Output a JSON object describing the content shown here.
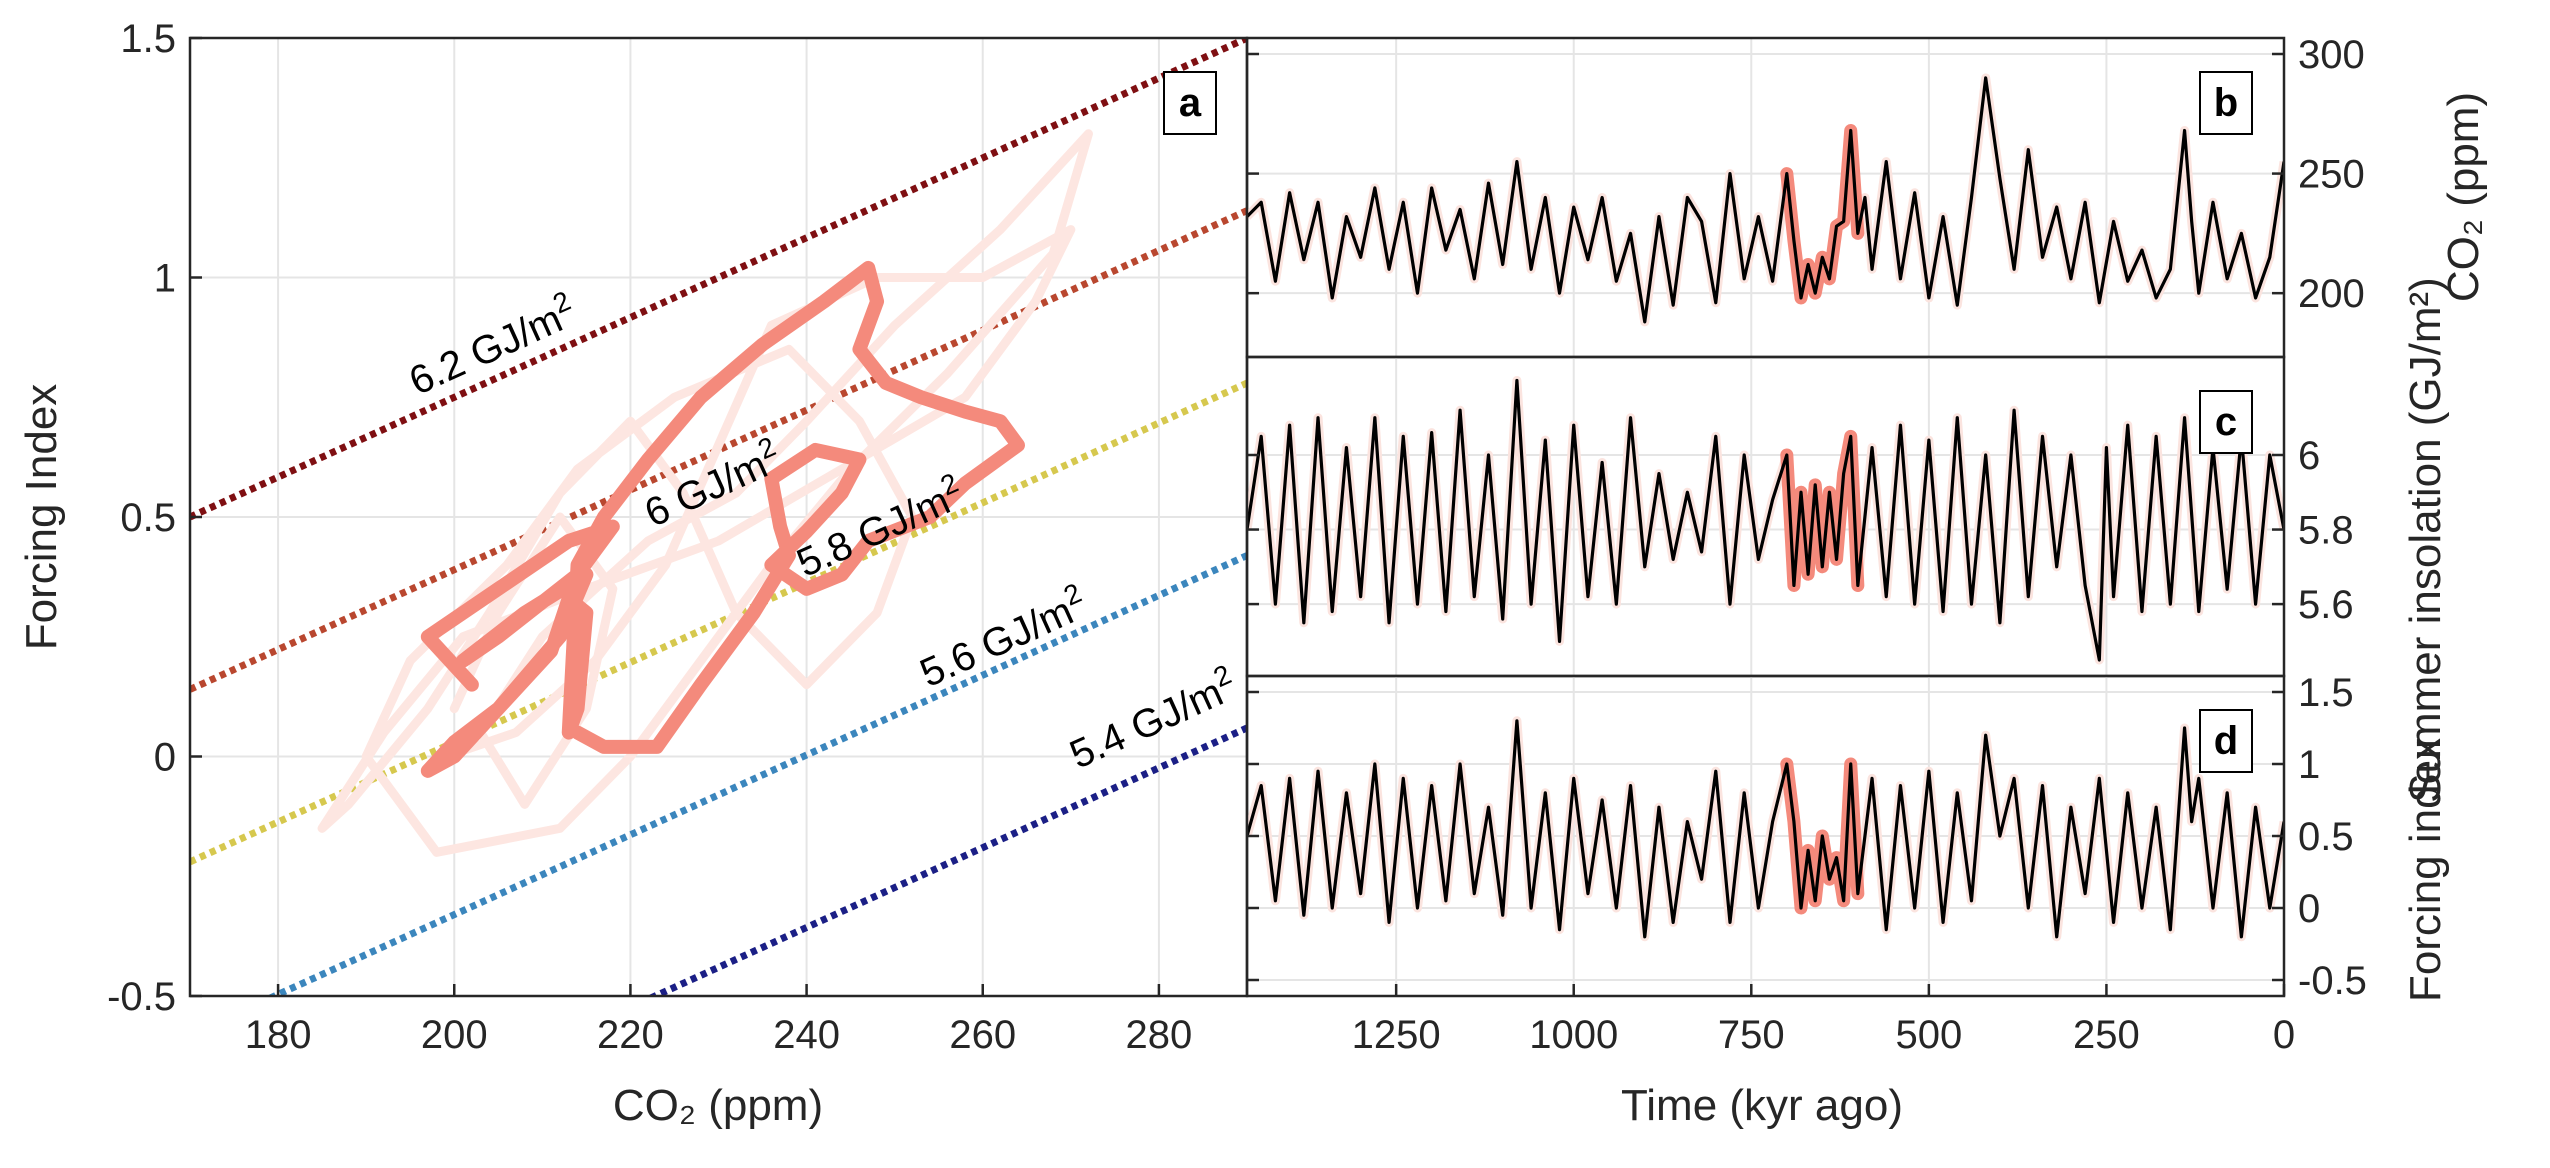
{
  "chart_data": [
    {
      "panel": "a",
      "type": "line",
      "xlabel": "CO₂ (ppm)",
      "ylabel": "Forcing Index",
      "xlim": [
        170,
        290
      ],
      "ylim": [
        -0.5,
        1.5
      ],
      "xticks": [
        180,
        200,
        220,
        240,
        260,
        280
      ],
      "yticks": [
        -0.5,
        0,
        0.5,
        1,
        1.5
      ],
      "ytick_labels": [
        "-0.5",
        "0",
        "0.5",
        "1",
        "1.5"
      ],
      "grid": true,
      "isolines": [
        {
          "label": "6.2 GJ/m",
          "sup": "2",
          "color": "#7f0f12",
          "y_at_xmin": 0.5,
          "slope": 0.00833
        },
        {
          "label": "6 GJ/m",
          "sup": "2",
          "color": "#b9472f",
          "y_at_xmin": 0.14,
          "slope": 0.00833
        },
        {
          "label": "5.8 GJ/m",
          "sup": "2",
          "color": "#d6c84e",
          "y_at_xmin": -0.22,
          "slope": 0.00833
        },
        {
          "label": "5.6 GJ/m",
          "sup": "2",
          "color": "#3b86bd",
          "y_at_xmin": -0.58,
          "slope": 0.00833
        },
        {
          "label": "5.4 GJ/m",
          "sup": "2",
          "color": "#1b1f86",
          "y_at_xmin": -0.94,
          "slope": 0.00833
        }
      ],
      "background_trajectory": [
        [
          200,
          0.1
        ],
        [
          205,
          0.3
        ],
        [
          212,
          0.5
        ],
        [
          218,
          0.35
        ],
        [
          215,
          0.1
        ],
        [
          208,
          -0.1
        ],
        [
          203,
          0.05
        ],
        [
          210,
          0.25
        ],
        [
          222,
          0.45
        ],
        [
          232,
          0.55
        ],
        [
          240,
          0.7
        ],
        [
          250,
          0.9
        ],
        [
          262,
          1.1
        ],
        [
          272,
          1.3
        ],
        [
          268,
          1.05
        ],
        [
          256,
          0.8
        ],
        [
          245,
          0.6
        ],
        [
          236,
          0.4
        ],
        [
          228,
          0.2
        ],
        [
          220,
          0.0
        ],
        [
          212,
          -0.15
        ],
        [
          198,
          -0.2
        ],
        [
          190,
          0.0
        ],
        [
          195,
          0.2
        ],
        [
          206,
          0.4
        ],
        [
          214,
          0.6
        ],
        [
          225,
          0.75
        ],
        [
          238,
          0.85
        ],
        [
          246,
          0.7
        ],
        [
          252,
          0.5
        ],
        [
          248,
          0.3
        ],
        [
          240,
          0.15
        ],
        [
          232,
          0.3
        ],
        [
          226,
          0.55
        ],
        [
          220,
          0.7
        ],
        [
          212,
          0.55
        ],
        [
          204,
          0.3
        ],
        [
          197,
          0.1
        ],
        [
          188,
          -0.1
        ],
        [
          185,
          -0.15
        ],
        [
          192,
          0.05
        ],
        [
          201,
          0.25
        ],
        [
          215,
          0.35
        ],
        [
          230,
          0.45
        ],
        [
          244,
          0.6
        ],
        [
          258,
          0.75
        ],
        [
          266,
          0.95
        ],
        [
          270,
          1.1
        ],
        [
          260,
          1.0
        ],
        [
          248,
          1.0
        ],
        [
          236,
          0.9
        ],
        [
          230,
          0.65
        ],
        [
          224,
          0.4
        ],
        [
          216,
          0.2
        ],
        [
          207,
          0.05
        ],
        [
          199,
          0.0
        ]
      ],
      "highlight_trajectory": [
        [
          202,
          0.15
        ],
        [
          197,
          0.25
        ],
        [
          205,
          0.35
        ],
        [
          213,
          0.45
        ],
        [
          218,
          0.48
        ],
        [
          214,
          0.38
        ],
        [
          205,
          0.25
        ],
        [
          201,
          0.2
        ],
        [
          208,
          0.3
        ],
        [
          215,
          0.38
        ],
        [
          212,
          0.25
        ],
        [
          205,
          0.1
        ],
        [
          200,
          0.03
        ],
        [
          197,
          -0.03
        ],
        [
          200,
          0.0
        ],
        [
          206,
          0.12
        ],
        [
          211,
          0.22
        ],
        [
          213,
          0.33
        ],
        [
          215,
          0.3
        ],
        [
          214,
          0.1
        ],
        [
          213,
          0.05
        ],
        [
          214,
          0.4
        ],
        [
          217,
          0.5
        ],
        [
          222,
          0.62
        ],
        [
          228,
          0.75
        ],
        [
          235,
          0.86
        ],
        [
          242,
          0.95
        ],
        [
          247,
          1.02
        ],
        [
          248,
          0.95
        ],
        [
          246,
          0.85
        ],
        [
          249,
          0.78
        ],
        [
          253,
          0.75
        ],
        [
          258,
          0.72
        ],
        [
          262,
          0.7
        ],
        [
          264,
          0.65
        ],
        [
          258,
          0.57
        ],
        [
          254,
          0.5
        ],
        [
          247,
          0.45
        ],
        [
          244,
          0.38
        ],
        [
          240,
          0.35
        ],
        [
          236,
          0.4
        ],
        [
          240,
          0.47
        ],
        [
          244,
          0.55
        ],
        [
          246,
          0.62
        ],
        [
          241,
          0.64
        ],
        [
          236,
          0.58
        ],
        [
          237,
          0.48
        ],
        [
          238,
          0.42
        ],
        [
          234,
          0.3
        ],
        [
          228,
          0.15
        ],
        [
          223,
          0.02
        ],
        [
          217,
          0.02
        ],
        [
          214,
          0.05
        ]
      ]
    },
    {
      "panel": "b",
      "type": "line",
      "ylabel": "CO₂ (ppm)",
      "y_axis_side": "right",
      "xlim": [
        1460,
        0
      ],
      "ylim": [
        180,
        300
      ],
      "yticks": [
        200,
        250,
        300
      ],
      "grid": true,
      "highlight_range": [
        700,
        600
      ],
      "series": [
        {
          "x": [
            1460,
            1440,
            1420,
            1400,
            1380,
            1360,
            1340,
            1320,
            1300,
            1280,
            1260,
            1240,
            1220,
            1200,
            1180,
            1160,
            1140,
            1120,
            1100,
            1080,
            1060,
            1040,
            1020,
            1000,
            980,
            960,
            940,
            920,
            900,
            880,
            860,
            840,
            820,
            800,
            780,
            760,
            740,
            720,
            700,
            690,
            680,
            670,
            660,
            650,
            640,
            630,
            620,
            610,
            600,
            590,
            580,
            560,
            540,
            520,
            500,
            480,
            460,
            440,
            420,
            400,
            380,
            360,
            340,
            320,
            300,
            280,
            260,
            240,
            220,
            200,
            180,
            160,
            140,
            130,
            120,
            100,
            80,
            60,
            40,
            20,
            0
          ],
          "values": [
            232,
            238,
            205,
            242,
            214,
            238,
            198,
            232,
            215,
            244,
            210,
            238,
            200,
            244,
            218,
            235,
            206,
            246,
            212,
            255,
            210,
            240,
            200,
            236,
            214,
            240,
            205,
            225,
            188,
            232,
            195,
            240,
            230,
            196,
            250,
            206,
            232,
            205,
            250,
            222,
            198,
            212,
            200,
            215,
            206,
            228,
            230,
            268,
            225,
            240,
            210,
            255,
            206,
            242,
            198,
            232,
            195,
            240,
            290,
            248,
            210,
            260,
            215,
            236,
            206,
            238,
            196,
            230,
            205,
            218,
            198,
            210,
            268,
            230,
            200,
            238,
            206,
            225,
            198,
            215,
            255
          ]
        }
      ]
    },
    {
      "panel": "c",
      "type": "line",
      "ylabel": "Summer insolation (GJ/m²)",
      "y_axis_side": "right",
      "xlim": [
        1460,
        0
      ],
      "ylim": [
        5.45,
        6.22
      ],
      "yticks": [
        5.6,
        5.8,
        6
      ],
      "ytick_labels": [
        "5.6",
        "5.8",
        "6"
      ],
      "grid": true,
      "highlight_range": [
        700,
        600
      ],
      "series": [
        {
          "x": [
            1460,
            1440,
            1420,
            1400,
            1380,
            1360,
            1340,
            1320,
            1300,
            1280,
            1260,
            1240,
            1220,
            1200,
            1180,
            1160,
            1140,
            1120,
            1100,
            1080,
            1060,
            1040,
            1020,
            1000,
            980,
            960,
            940,
            920,
            900,
            880,
            860,
            840,
            820,
            800,
            780,
            760,
            740,
            720,
            700,
            690,
            680,
            670,
            660,
            650,
            640,
            630,
            620,
            610,
            600,
            580,
            560,
            540,
            520,
            500,
            480,
            460,
            440,
            420,
            400,
            380,
            360,
            340,
            320,
            300,
            280,
            260,
            250,
            240,
            220,
            200,
            180,
            160,
            140,
            120,
            100,
            80,
            60,
            40,
            20,
            0
          ],
          "values": [
            5.8,
            6.05,
            5.6,
            6.08,
            5.55,
            6.1,
            5.58,
            6.02,
            5.62,
            6.1,
            5.55,
            6.05,
            5.6,
            6.06,
            5.58,
            6.12,
            5.62,
            6.0,
            5.56,
            6.2,
            5.6,
            6.04,
            5.5,
            6.08,
            5.62,
            5.98,
            5.6,
            6.1,
            5.7,
            5.95,
            5.72,
            5.9,
            5.74,
            6.05,
            5.6,
            6.0,
            5.72,
            5.88,
            6.0,
            5.65,
            5.9,
            5.68,
            5.92,
            5.7,
            5.9,
            5.72,
            5.95,
            6.05,
            5.65,
            6.02,
            5.62,
            6.08,
            5.6,
            6.04,
            5.58,
            6.1,
            5.6,
            6.0,
            5.55,
            6.12,
            5.62,
            6.05,
            5.7,
            6.0,
            5.65,
            5.45,
            6.02,
            5.62,
            6.08,
            5.58,
            6.05,
            5.6,
            6.1,
            5.58,
            6.02,
            5.64,
            6.05,
            5.6,
            6.0,
            5.8
          ]
        }
      ]
    },
    {
      "panel": "d",
      "type": "line",
      "ylabel": "Forcing index",
      "xlabel": "Time (kyr ago)",
      "y_axis_side": "right",
      "xlim": [
        1460,
        0
      ],
      "ylim": [
        -0.5,
        1.5
      ],
      "yticks": [
        -0.5,
        0,
        0.5,
        1,
        1.5
      ],
      "ytick_labels": [
        "-0.5",
        "0",
        "0.5",
        "1",
        "1.5"
      ],
      "xticks": [
        1250,
        1000,
        750,
        500,
        250,
        0
      ],
      "grid": true,
      "highlight_range": [
        700,
        600
      ],
      "series": [
        {
          "x": [
            1460,
            1440,
            1420,
            1400,
            1380,
            1360,
            1340,
            1320,
            1300,
            1280,
            1260,
            1240,
            1220,
            1200,
            1180,
            1160,
            1140,
            1120,
            1100,
            1080,
            1060,
            1040,
            1020,
            1000,
            980,
            960,
            940,
            920,
            900,
            880,
            860,
            840,
            820,
            800,
            780,
            760,
            740,
            720,
            700,
            690,
            680,
            670,
            660,
            650,
            640,
            630,
            620,
            610,
            600,
            580,
            560,
            540,
            520,
            500,
            480,
            460,
            440,
            420,
            400,
            380,
            360,
            340,
            320,
            300,
            280,
            260,
            240,
            220,
            200,
            180,
            160,
            140,
            130,
            120,
            100,
            80,
            60,
            40,
            20,
            0
          ],
          "values": [
            0.5,
            0.85,
            0.05,
            0.9,
            -0.05,
            0.95,
            0.0,
            0.8,
            0.1,
            1.0,
            -0.1,
            0.9,
            0.0,
            0.85,
            0.05,
            1.0,
            0.1,
            0.7,
            -0.05,
            1.3,
            0.0,
            0.8,
            -0.15,
            0.9,
            0.1,
            0.75,
            0.0,
            0.85,
            -0.2,
            0.7,
            -0.1,
            0.6,
            0.2,
            0.95,
            -0.1,
            0.8,
            0.0,
            0.6,
            1.0,
            0.6,
            0.0,
            0.4,
            0.05,
            0.5,
            0.2,
            0.35,
            0.05,
            1.0,
            0.1,
            0.9,
            -0.15,
            0.85,
            0.0,
            0.95,
            -0.1,
            0.8,
            0.05,
            1.2,
            0.5,
            0.9,
            0.0,
            0.85,
            -0.2,
            0.7,
            0.1,
            0.9,
            -0.1,
            0.8,
            0.0,
            0.7,
            -0.15,
            1.25,
            0.6,
            0.9,
            0.0,
            0.8,
            -0.2,
            0.7,
            0.0,
            0.6
          ]
        }
      ]
    }
  ]
}
